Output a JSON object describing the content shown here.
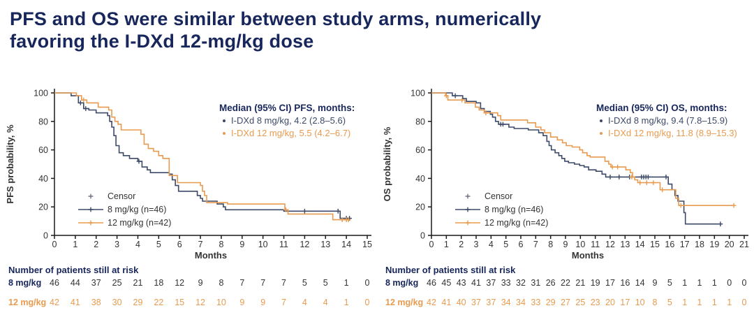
{
  "title": {
    "line1": "PFS and OS were similar between study arms, numerically",
    "line2": "favoring the I-DXd 12-mg/kg dose"
  },
  "colors": {
    "navy": "#3C4A68",
    "orange": "#E89B4F",
    "heading": "#17265B",
    "text": "#333333",
    "axis": "#1a1a1a"
  },
  "chart_data": [
    {
      "type": "line",
      "subtype": "kaplan-meier-step",
      "xlabel": "Months",
      "ylabel": "PFS probability, %",
      "xmax": 15,
      "ylim": [
        0,
        100
      ],
      "xticks": [
        0,
        1,
        2,
        3,
        4,
        5,
        6,
        7,
        8,
        9,
        10,
        11,
        12,
        13,
        14,
        15
      ],
      "yticks": [
        0,
        20,
        40,
        60,
        80,
        100
      ],
      "median_legend": {
        "header": "Median (95% CI) PFS, months:",
        "items": [
          {
            "text": "I-DXd 8 mg/kg, 4.2 (2.8–5.6)",
            "color": "navy"
          },
          {
            "text": "I-DXd 12 mg/kg, 5.5 (4.2–6.7)",
            "color": "orange"
          }
        ]
      },
      "series_legend": {
        "censor_label": "Censor",
        "items": [
          {
            "text": "8 mg/kg (n=46)",
            "color": "navy"
          },
          {
            "text": "12 mg/kg (n=42)",
            "color": "orange"
          }
        ]
      },
      "series": [
        {
          "name": "8 mg/kg",
          "color": "navy",
          "steps": [
            [
              0,
              100
            ],
            [
              0.8,
              98
            ],
            [
              1.15,
              93
            ],
            [
              1.4,
              89
            ],
            [
              1.65,
              88
            ],
            [
              2.0,
              86
            ],
            [
              2.55,
              84
            ],
            [
              2.65,
              80
            ],
            [
              2.75,
              76
            ],
            [
              2.85,
              70
            ],
            [
              2.95,
              63
            ],
            [
              3.1,
              58
            ],
            [
              3.3,
              56
            ],
            [
              3.6,
              54
            ],
            [
              4.0,
              52
            ],
            [
              4.2,
              48
            ],
            [
              4.45,
              46
            ],
            [
              4.6,
              44
            ],
            [
              5.5,
              43
            ],
            [
              5.65,
              39
            ],
            [
              5.8,
              35
            ],
            [
              5.95,
              31
            ],
            [
              6.85,
              28
            ],
            [
              7.0,
              26
            ],
            [
              7.1,
              24
            ],
            [
              7.8,
              22
            ],
            [
              8.1,
              20
            ],
            [
              8.2,
              18
            ],
            [
              11.0,
              17
            ],
            [
              13.7,
              12
            ],
            [
              14.2,
              12
            ]
          ],
          "censors": [
            [
              1.25,
              93
            ],
            [
              1.5,
              89
            ],
            [
              4.05,
              52
            ],
            [
              12.0,
              17
            ],
            [
              13.6,
              17
            ],
            [
              14.0,
              12
            ],
            [
              14.15,
              12
            ]
          ]
        },
        {
          "name": "12 mg/kg",
          "color": "orange",
          "steps": [
            [
              0,
              100
            ],
            [
              1.05,
              98
            ],
            [
              1.3,
              95
            ],
            [
              1.55,
              93
            ],
            [
              2.1,
              90
            ],
            [
              2.6,
              88
            ],
            [
              2.75,
              83
            ],
            [
              2.9,
              80
            ],
            [
              3.05,
              78
            ],
            [
              3.2,
              74
            ],
            [
              4.15,
              71
            ],
            [
              4.3,
              64
            ],
            [
              4.5,
              61
            ],
            [
              4.75,
              59
            ],
            [
              5.0,
              56
            ],
            [
              5.2,
              54
            ],
            [
              5.5,
              42
            ],
            [
              5.9,
              37
            ],
            [
              7.0,
              35
            ],
            [
              7.1,
              31
            ],
            [
              7.2,
              28
            ],
            [
              7.3,
              23
            ],
            [
              8.3,
              22
            ],
            [
              11.05,
              18
            ],
            [
              11.2,
              15
            ],
            [
              13.35,
              11
            ],
            [
              14.15,
              11
            ]
          ],
          "censors": [
            [
              1.4,
              95
            ],
            [
              11.1,
              18
            ],
            [
              13.8,
              11
            ],
            [
              14.0,
              11
            ],
            [
              14.1,
              11
            ]
          ]
        }
      ],
      "at_risk": {
        "heading": "Number of patients still at risk",
        "rows": [
          {
            "label": "8 mg/kg",
            "color": "navy",
            "values": [
              46,
              44,
              37,
              25,
              21,
              18,
              12,
              9,
              8,
              7,
              7,
              7,
              5,
              5,
              1,
              0
            ]
          },
          {
            "label": "12 mg/kg",
            "color": "orange",
            "values": [
              42,
              41,
              38,
              30,
              29,
              22,
              15,
              12,
              10,
              9,
              9,
              7,
              4,
              4,
              1,
              0
            ]
          }
        ]
      }
    },
    {
      "type": "line",
      "subtype": "kaplan-meier-step",
      "xlabel": "Months",
      "ylabel": "OS probability, %",
      "xmax": 21,
      "ylim": [
        0,
        100
      ],
      "xticks": [
        0,
        1,
        2,
        3,
        4,
        5,
        6,
        7,
        8,
        9,
        10,
        11,
        12,
        13,
        14,
        15,
        16,
        17,
        18,
        19,
        20,
        21
      ],
      "yticks": [
        0,
        20,
        40,
        60,
        80,
        100
      ],
      "median_legend": {
        "header": "Median (95% CI) OS, months:",
        "items": [
          {
            "text": "I-DXd 8 mg/kg, 9.4 (7.8–15.9)",
            "color": "navy"
          },
          {
            "text": "I-DXd 12 mg/kg, 11.8 (8.9–15.3)",
            "color": "orange"
          }
        ]
      },
      "series_legend": {
        "censor_label": "Censor",
        "items": [
          {
            "text": "8 mg/kg (n=46)",
            "color": "navy"
          },
          {
            "text": "12 mg/kg (n=42)",
            "color": "orange"
          }
        ]
      },
      "series": [
        {
          "name": "8 mg/kg",
          "color": "navy",
          "steps": [
            [
              0,
              100
            ],
            [
              1.4,
              98
            ],
            [
              2.1,
              96
            ],
            [
              2.35,
              94
            ],
            [
              3.0,
              93
            ],
            [
              3.3,
              89
            ],
            [
              3.55,
              87
            ],
            [
              3.95,
              85
            ],
            [
              4.1,
              83
            ],
            [
              4.3,
              80
            ],
            [
              4.5,
              78
            ],
            [
              5.2,
              76
            ],
            [
              5.55,
              75
            ],
            [
              6.5,
              74
            ],
            [
              7.2,
              72
            ],
            [
              7.5,
              70
            ],
            [
              7.75,
              66
            ],
            [
              7.9,
              63
            ],
            [
              8.05,
              60
            ],
            [
              8.3,
              58
            ],
            [
              8.55,
              56
            ],
            [
              8.75,
              54
            ],
            [
              8.95,
              52
            ],
            [
              9.2,
              51
            ],
            [
              9.6,
              50
            ],
            [
              9.95,
              49
            ],
            [
              10.25,
              48
            ],
            [
              10.55,
              46
            ],
            [
              11.05,
              45
            ],
            [
              11.45,
              43
            ],
            [
              11.7,
              41
            ],
            [
              15.9,
              36
            ],
            [
              16.15,
              32
            ],
            [
              16.35,
              28
            ],
            [
              16.55,
              24
            ],
            [
              16.95,
              16
            ],
            [
              17.05,
              8
            ],
            [
              19.45,
              8
            ]
          ],
          "censors": [
            [
              1.6,
              98
            ],
            [
              4.65,
              78
            ],
            [
              4.8,
              78
            ],
            [
              12.0,
              41
            ],
            [
              12.6,
              41
            ],
            [
              13.3,
              41
            ],
            [
              14.1,
              41
            ],
            [
              14.25,
              41
            ],
            [
              14.4,
              41
            ],
            [
              14.55,
              41
            ],
            [
              15.75,
              41
            ],
            [
              19.4,
              8
            ]
          ]
        },
        {
          "name": "12 mg/kg",
          "color": "orange",
          "steps": [
            [
              0,
              100
            ],
            [
              0.95,
              98
            ],
            [
              1.1,
              95
            ],
            [
              2.25,
              93
            ],
            [
              2.95,
              90
            ],
            [
              3.2,
              88
            ],
            [
              3.55,
              86
            ],
            [
              4.45,
              84
            ],
            [
              4.65,
              81
            ],
            [
              6.45,
              79
            ],
            [
              7.0,
              76
            ],
            [
              7.35,
              74
            ],
            [
              7.6,
              72
            ],
            [
              8.0,
              69
            ],
            [
              8.45,
              67
            ],
            [
              8.8,
              65
            ],
            [
              9.05,
              63
            ],
            [
              9.45,
              62
            ],
            [
              9.95,
              60
            ],
            [
              10.15,
              58
            ],
            [
              10.45,
              56
            ],
            [
              10.65,
              55
            ],
            [
              11.65,
              52
            ],
            [
              11.9,
              50
            ],
            [
              12.05,
              48
            ],
            [
              13.05,
              46
            ],
            [
              13.35,
              44
            ],
            [
              13.5,
              41
            ],
            [
              13.65,
              39
            ],
            [
              13.85,
              37
            ],
            [
              15.35,
              32
            ],
            [
              16.4,
              26
            ],
            [
              16.6,
              21
            ],
            [
              20.35,
              21
            ]
          ],
          "censors": [
            [
              1.0,
              98
            ],
            [
              2.05,
              95
            ],
            [
              3.65,
              86
            ],
            [
              12.15,
              48
            ],
            [
              12.5,
              48
            ],
            [
              13.45,
              41
            ],
            [
              14.0,
              37
            ],
            [
              14.45,
              37
            ],
            [
              14.9,
              37
            ],
            [
              15.5,
              32
            ],
            [
              16.75,
              21
            ],
            [
              20.3,
              21
            ]
          ]
        }
      ],
      "at_risk": {
        "heading": "Number of patients still at risk",
        "rows": [
          {
            "label": "8 mg/kg",
            "color": "navy",
            "values": [
              46,
              45,
              43,
              41,
              37,
              33,
              32,
              31,
              26,
              22,
              21,
              19,
              17,
              16,
              14,
              9,
              5,
              1,
              1,
              1,
              0,
              0
            ]
          },
          {
            "label": "12 mg/kg",
            "color": "orange",
            "values": [
              42,
              41,
              40,
              37,
              37,
              34,
              34,
              33,
              29,
              27,
              25,
              23,
              20,
              17,
              10,
              8,
              5,
              1,
              1,
              1,
              1,
              0
            ]
          }
        ]
      }
    }
  ]
}
